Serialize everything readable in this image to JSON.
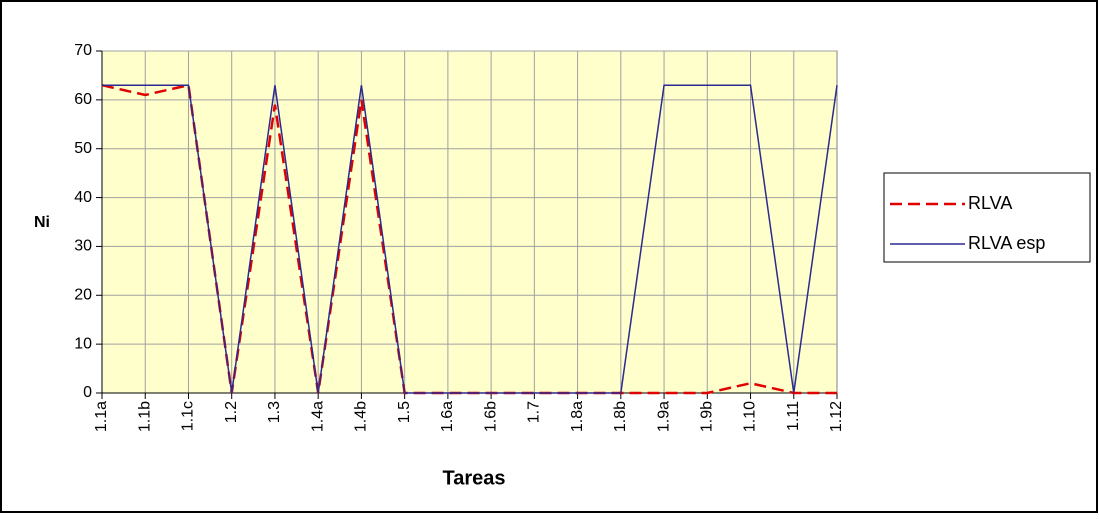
{
  "chart_data": {
    "type": "line",
    "xlabel": "Tareas",
    "ylabel": "Ni",
    "categories": [
      "1.1a",
      "1.1b",
      "1.1c",
      "1.2",
      "1.3",
      "1.4a",
      "1.4b",
      "1.5",
      "1.6a",
      "1.6b",
      "1.7",
      "1.8a",
      "1.8b",
      "1.9a",
      "1.9b",
      "1.10",
      "1.11",
      "1.12"
    ],
    "series": [
      {
        "name": "RLVA",
        "color": "#e00000",
        "dashed": true,
        "values": [
          63,
          61,
          63,
          0,
          59,
          0,
          60,
          0,
          0,
          0,
          0,
          0,
          0,
          0,
          0,
          2,
          0,
          0
        ]
      },
      {
        "name": "RLVA esp",
        "color": "#2a2a90",
        "dashed": false,
        "values": [
          63,
          63,
          63,
          0,
          63,
          0,
          63,
          0,
          0,
          0,
          0,
          0,
          0,
          63,
          63,
          63,
          0,
          63
        ]
      }
    ],
    "ylim": [
      0,
      70
    ],
    "yticks": [
      0,
      10,
      20,
      30,
      40,
      50,
      60,
      70
    ],
    "grid": true,
    "background": "#ffffcc"
  }
}
